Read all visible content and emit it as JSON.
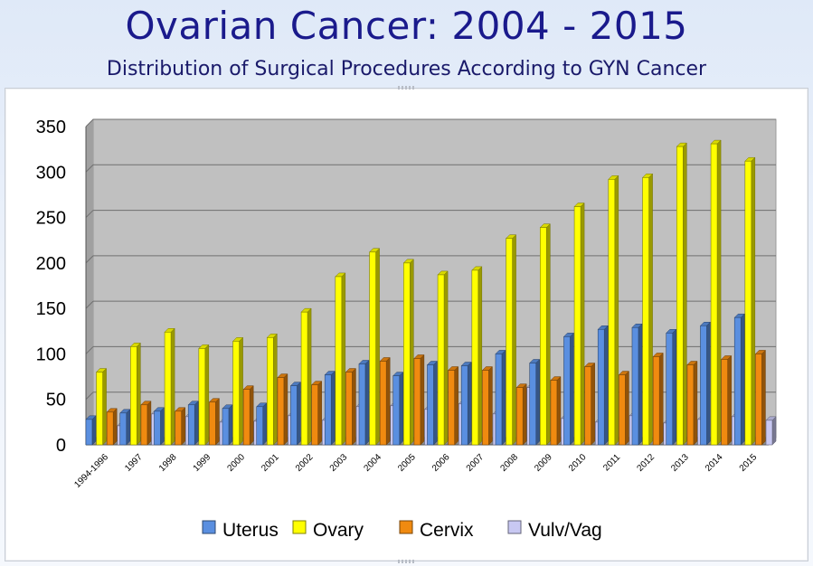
{
  "slide": {
    "title": "Ovarian Cancer: 2004 - 2015",
    "subtitle": "Distribution of Surgical Procedures According to GYN Cancer"
  },
  "colors": {
    "Uterus": "#5a8fe0",
    "Ovary": "#ffff00",
    "Cervix": "#f08a10",
    "Vulv/Vag": "#c8c8f2"
  },
  "chart_data": {
    "type": "bar",
    "categories": [
      "1994-1996",
      "1997",
      "1998",
      "1999",
      "2000",
      "2001",
      "2002",
      "2003",
      "2004",
      "2005",
      "2006",
      "2007",
      "2008",
      "2009",
      "2010",
      "2011",
      "2012",
      "2013",
      "2014",
      "2015"
    ],
    "series": [
      {
        "name": "Uterus",
        "values": [
          28,
          35,
          37,
          44,
          40,
          42,
          65,
          77,
          89,
          76,
          88,
          87,
          100,
          90,
          119,
          127,
          129,
          123,
          131,
          140
        ]
      },
      {
        "name": "Ovary",
        "values": [
          80,
          108,
          124,
          106,
          114,
          118,
          146,
          185,
          212,
          200,
          187,
          192,
          227,
          239,
          262,
          292,
          294,
          328,
          331,
          312
        ]
      },
      {
        "name": "Cervix",
        "values": [
          36,
          44,
          37,
          47,
          61,
          74,
          66,
          80,
          92,
          95,
          82,
          82,
          63,
          71,
          86,
          77,
          97,
          88,
          94,
          100
        ]
      },
      {
        "name": "Vulv/Vag",
        "values": [
          21,
          34,
          31,
          25,
          26,
          32,
          27,
          42,
          43,
          39,
          45,
          34,
          63,
          29,
          25,
          32,
          24,
          28,
          31,
          27
        ]
      }
    ],
    "yticks": [
      0,
      50,
      100,
      150,
      200,
      250,
      300,
      350
    ],
    "ylim": [
      0,
      350
    ],
    "grid": true,
    "legend": "bottom"
  }
}
